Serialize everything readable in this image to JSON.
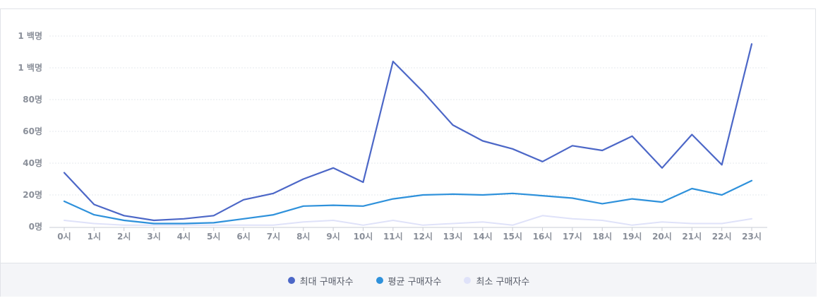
{
  "chart_data": {
    "type": "line",
    "categories": [
      "0시",
      "1시",
      "2시",
      "3시",
      "4시",
      "5시",
      "6시",
      "7시",
      "8시",
      "9시",
      "10시",
      "11시",
      "12시",
      "13시",
      "14시",
      "15시",
      "16시",
      "17시",
      "18시",
      "19시",
      "20시",
      "21시",
      "22시",
      "23시"
    ],
    "y_tick_labels": [
      "0명",
      "20명",
      "40명",
      "60명",
      "80명",
      "1 백명",
      "1 백명"
    ],
    "ylim": [
      0,
      120
    ],
    "grid": true,
    "legend_position": "bottom-center",
    "series": [
      {
        "name": "최대 구매자수",
        "color": "#4c67c7",
        "values": [
          34,
          14,
          7,
          4,
          5,
          7,
          17,
          21,
          30,
          37,
          28,
          104,
          85,
          64,
          54,
          49,
          41,
          51,
          48,
          57,
          37,
          58,
          39,
          115
        ]
      },
      {
        "name": "평균 구매자수",
        "color": "#2e91db",
        "values": [
          16,
          7.5,
          4,
          2,
          2,
          2.5,
          5,
          7.5,
          13,
          13.5,
          13,
          17.5,
          20,
          20.5,
          20,
          21,
          19.5,
          18,
          14.5,
          17.5,
          15.5,
          24,
          20,
          29
        ]
      },
      {
        "name": "최소 구매자수",
        "color": "#dfe2f9",
        "values": [
          4,
          2,
          1,
          1,
          1,
          1,
          1,
          1,
          3,
          4,
          1,
          4,
          1,
          2,
          3,
          1,
          7,
          5,
          4,
          1,
          3,
          2,
          2,
          5
        ]
      }
    ]
  }
}
